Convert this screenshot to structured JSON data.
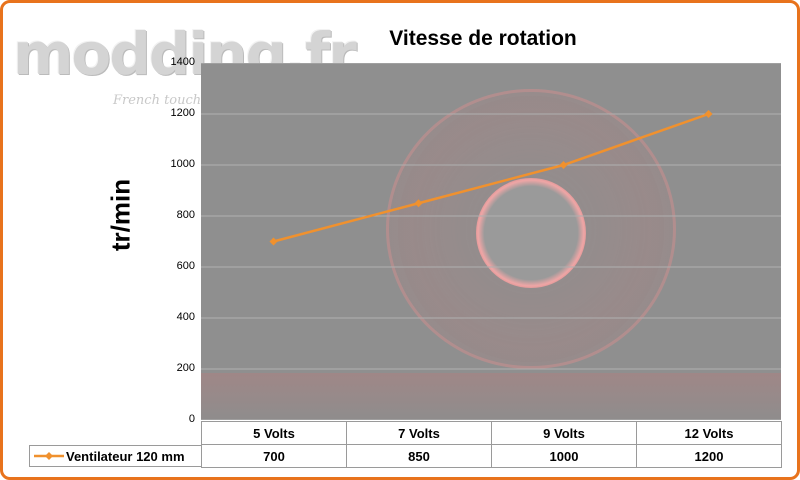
{
  "watermark": {
    "logo_text": "modding.fr",
    "logo_subtext": "French touch"
  },
  "chart_data": {
    "type": "line",
    "title": "Vitesse de rotation",
    "ylabel": "tr/min",
    "xlabel": "",
    "categories": [
      "5 Volts",
      "7 Volts",
      "9 Volts",
      "12 Volts"
    ],
    "series": [
      {
        "name": "Ventilateur 120 mm",
        "values": [
          700,
          850,
          1000,
          1200
        ],
        "color": "#f0912e"
      }
    ],
    "ylim": [
      0,
      1400
    ],
    "yticks": [
      "0",
      "200",
      "400",
      "600",
      "800",
      "1000",
      "1200",
      "1400"
    ],
    "grid": true,
    "legend": "data-table",
    "plot_background": "#8f8f8f",
    "frame_color": "#e8731c"
  }
}
